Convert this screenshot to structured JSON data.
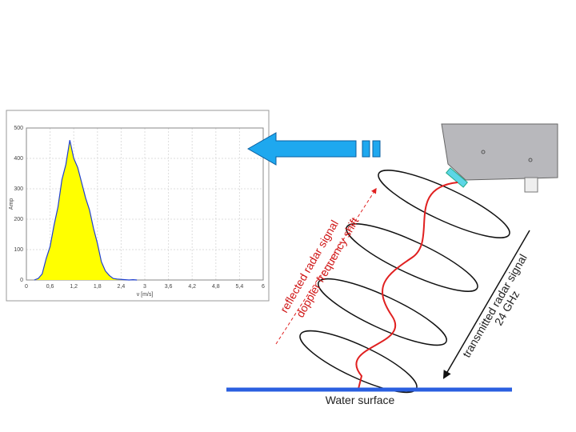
{
  "chart_data": {
    "type": "area",
    "x_label": "v [m/s]",
    "y_label": "Amp",
    "x": [
      0.2,
      0.3,
      0.4,
      0.5,
      0.6,
      0.7,
      0.8,
      0.9,
      1.0,
      1.1,
      1.2,
      1.3,
      1.4,
      1.5,
      1.6,
      1.7,
      1.8,
      1.9,
      2.0,
      2.1,
      2.2,
      2.3,
      2.4,
      2.5,
      2.6,
      2.7,
      2.8
    ],
    "values": [
      0,
      5,
      20,
      70,
      110,
      180,
      240,
      330,
      380,
      460,
      400,
      370,
      320,
      270,
      230,
      170,
      120,
      60,
      30,
      15,
      5,
      3,
      2,
      1,
      0,
      1,
      0
    ],
    "color": "#1f3fd0",
    "fill_color": "#ffff00",
    "xlim": [
      0,
      6
    ],
    "ylim": [
      0,
      500
    ],
    "xticks": [
      0,
      {
        "value": 0.6,
        "label": "0,6"
      },
      {
        "value": 1.2,
        "label": "1,2"
      },
      {
        "value": 1.8,
        "label": "1,8"
      },
      {
        "value": 2.4,
        "label": "2,4"
      },
      3,
      {
        "value": 3.6,
        "label": "3,6"
      },
      {
        "value": 4.2,
        "label": "4,2"
      },
      {
        "value": 4.8,
        "label": "4,8"
      },
      {
        "value": 5.4,
        "label": "5,4"
      },
      6
    ],
    "yticks": [
      0,
      100,
      200,
      300,
      400,
      500
    ],
    "grid": true
  },
  "diagram": {
    "reflected_label": "reflected radar signal",
    "doppler_label": "doppler frequency shift",
    "transmitted_label": "transmitted radar signal",
    "frequency_label": "24 GHz",
    "surface_label": "Water surface"
  }
}
